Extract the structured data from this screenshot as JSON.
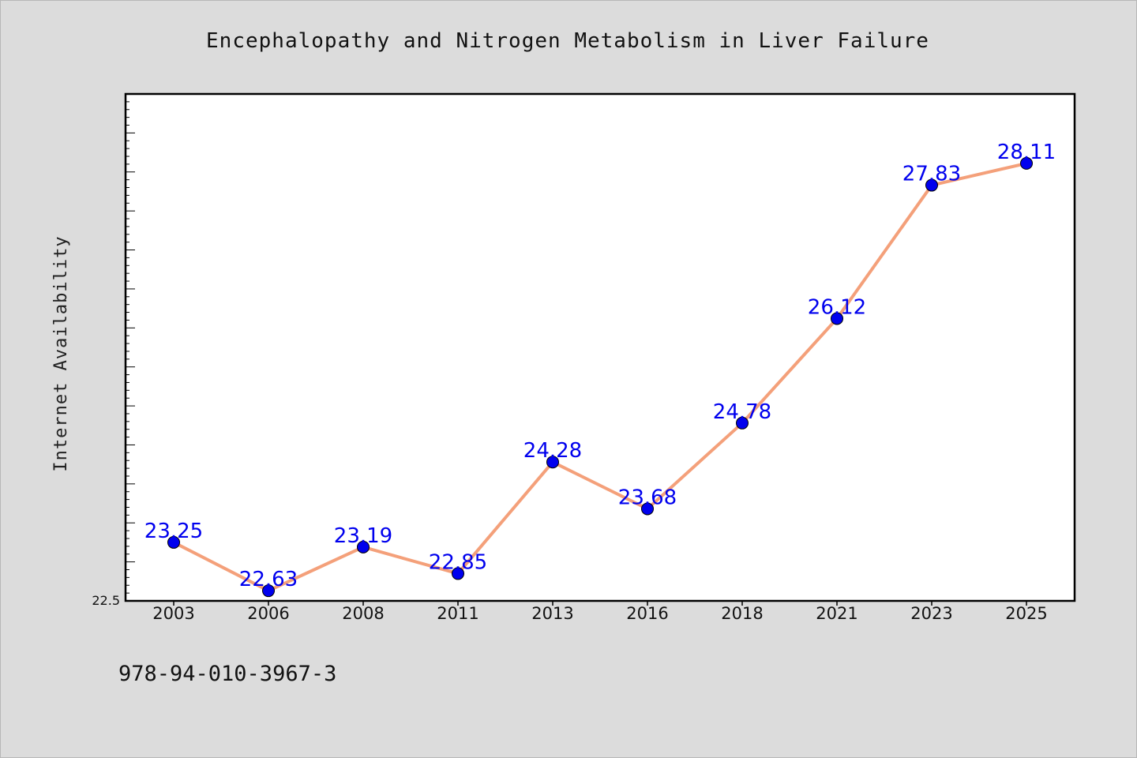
{
  "chart_data": {
    "type": "line",
    "title": "Encephalopathy and Nitrogen Metabolism in Liver Failure",
    "xlabel": "",
    "ylabel": "Internet Availability",
    "categories": [
      "2003",
      "2006",
      "2008",
      "2011",
      "2013",
      "2016",
      "2018",
      "2021",
      "2023",
      "2025"
    ],
    "series": [
      {
        "values": [
          23.25,
          22.63,
          23.19,
          22.85,
          24.28,
          23.68,
          24.78,
          26.12,
          27.83,
          28.11
        ]
      }
    ],
    "data_labels": [
      "23.25",
      "22.63",
      "23.19",
      "22.85",
      "24.28",
      "23.68",
      "24.78",
      "26.12",
      "27.83",
      "28.11"
    ],
    "ylim": [
      22.5,
      29.0
    ],
    "ytick_labels": [
      "22.5"
    ],
    "grid": false,
    "legend": "none",
    "line_color": "#f4a07a",
    "marker_color": "#0000ee"
  },
  "footer": {
    "isbn": "978-94-010-3967-3"
  }
}
